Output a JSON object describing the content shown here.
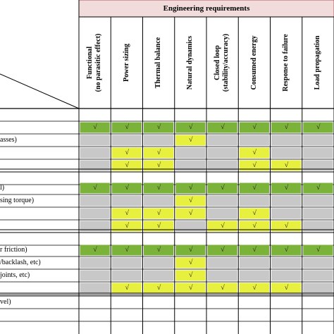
{
  "header": {
    "title": "Engineering requirements"
  },
  "columns": [
    [
      "Functional",
      "(no parasitic effect)"
    ],
    [
      "Power sizing"
    ],
    [
      "Thermal balance"
    ],
    [
      "Natural dynamics"
    ],
    [
      "Closed loop",
      "(stability/accuracy)"
    ],
    [
      "Consumed energy"
    ],
    [
      "Response to failure"
    ],
    [
      "Load propagation"
    ]
  ],
  "row_labels": [
    "",
    "",
    "asses)",
    "",
    "",
    "",
    "l)",
    "sing torque)",
    "",
    "",
    "",
    "r friction)",
    "/backlash, etc)",
    "joints, etc)",
    "",
    "vel)",
    ""
  ],
  "check_mark": "√",
  "colors": {
    "green": "#7bb33a",
    "yellow": "#e8f03f",
    "gray": "#c8c8c8",
    "header_pink": "#f2dcdb",
    "header_border": "#b1525f"
  },
  "grid": [
    [
      "",
      "",
      "",
      "",
      "",
      "",
      "",
      ""
    ],
    [
      "GC",
      "GC",
      "GC",
      "GC",
      "GC",
      "GC",
      "GC",
      "GC"
    ],
    [
      "S",
      "S",
      "S",
      "YC",
      "S",
      "S",
      "S",
      "S"
    ],
    [
      "S",
      "YC",
      "YC",
      "S",
      "S",
      "YC",
      "S",
      "S"
    ],
    [
      "S",
      "YC",
      "YC",
      "S",
      "S",
      "YC",
      "YC",
      "S"
    ],
    [
      "",
      "",
      "",
      "",
      "",
      "",
      "",
      ""
    ],
    [
      "GC",
      "GC",
      "GC",
      "GC",
      "GC",
      "GC",
      "GC",
      "GC"
    ],
    [
      "S",
      "S",
      "S",
      "YC",
      "S",
      "S",
      "S",
      "S"
    ],
    [
      "S",
      "YC",
      "YC",
      "YC",
      "S",
      "YC",
      "S",
      "S"
    ],
    [
      "S",
      "YC",
      "YC",
      "S",
      "YC",
      "YC",
      "YC",
      "S"
    ],
    [
      "",
      "",
      "",
      "",
      "",
      "",
      "",
      ""
    ],
    [
      "GC",
      "GC",
      "GC",
      "GC",
      "GC",
      "GC",
      "GC",
      "GC"
    ],
    [
      "S",
      "S",
      "S",
      "YC",
      "S",
      "S",
      "S",
      "S"
    ],
    [
      "S",
      "S",
      "S",
      "YC",
      "S",
      "S",
      "S",
      "S"
    ],
    [
      "S",
      "YC",
      "YC",
      "YC",
      "YC",
      "YC",
      "YC",
      "S"
    ],
    [
      "",
      "",
      "",
      "",
      "",
      "",
      "",
      ""
    ],
    [
      "",
      "",
      "",
      "",
      "",
      "",
      "",
      ""
    ]
  ]
}
